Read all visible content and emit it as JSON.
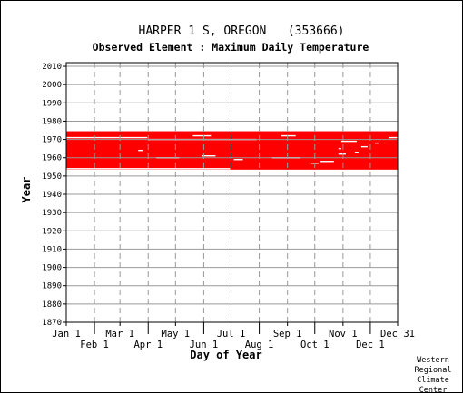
{
  "chart_data": {
    "type": "scatter",
    "title": "HARPER 1 S, OREGON   (353666)",
    "subtitle": "Observed Element : Maximum Daily Temperature",
    "xlabel": "Day of Year",
    "ylabel": "Year",
    "ylim": [
      1870,
      2012
    ],
    "yticks": [
      1870,
      1880,
      1890,
      1900,
      1910,
      1920,
      1930,
      1940,
      1950,
      1960,
      1970,
      1980,
      1990,
      2000,
      2010
    ],
    "xlim": [
      1,
      365
    ],
    "xticks_upper": [
      {
        "label": "Jan 1",
        "day": 1
      },
      {
        "label": "Mar 1",
        "day": 60
      },
      {
        "label": "May 1",
        "day": 121
      },
      {
        "label": "Jul 1",
        "day": 182
      },
      {
        "label": "Sep 1",
        "day": 244
      },
      {
        "label": "Nov 1",
        "day": 305
      },
      {
        "label": "Dec 31",
        "day": 365
      }
    ],
    "xticks_lower": [
      {
        "label": "Feb 1",
        "day": 32
      },
      {
        "label": "Apr 1",
        "day": 91
      },
      {
        "label": "Jun 1",
        "day": 152
      },
      {
        "label": "Aug 1",
        "day": 213
      },
      {
        "label": "Oct 1",
        "day": 274
      },
      {
        "label": "Dec 1",
        "day": 335
      }
    ],
    "grid": true,
    "marker_color": "#ff0000",
    "data_years": [
      1954,
      1974
    ],
    "observed_periods": [
      {
        "start_year": 1954,
        "start_day": 1,
        "end_year": 1974,
        "end_day": 365
      }
    ],
    "missing_data": [
      {
        "year": 1971,
        "start_day": 1,
        "end_day": 90
      },
      {
        "year": 1970,
        "start_day": 91,
        "end_day": 210
      },
      {
        "year": 1972,
        "start_day": 140,
        "end_day": 160
      },
      {
        "year": 1964,
        "start_day": 80,
        "end_day": 85
      },
      {
        "year": 1961,
        "start_day": 150,
        "end_day": 165
      },
      {
        "year": 1960,
        "start_day": 100,
        "end_day": 125
      },
      {
        "year": 1960,
        "start_day": 227,
        "end_day": 258
      },
      {
        "year": 1959,
        "start_day": 185,
        "end_day": 195
      },
      {
        "year": 1972,
        "start_day": 237,
        "end_day": 253
      },
      {
        "year": 1969,
        "start_day": 303,
        "end_day": 320
      },
      {
        "year": 1966,
        "start_day": 325,
        "end_day": 332
      },
      {
        "year": 1965,
        "start_day": 300,
        "end_day": 303
      },
      {
        "year": 1963,
        "start_day": 318,
        "end_day": 322
      },
      {
        "year": 1962,
        "start_day": 300,
        "end_day": 308
      },
      {
        "year": 1958,
        "start_day": 280,
        "end_day": 295
      },
      {
        "year": 1957,
        "start_day": 270,
        "end_day": 278
      },
      {
        "year": 1971,
        "start_day": 355,
        "end_day": 365
      },
      {
        "year": 1968,
        "start_day": 340,
        "end_day": 345
      },
      {
        "year": 1954,
        "start_day": 1,
        "end_day": 181
      }
    ]
  },
  "credit": [
    "Western",
    "Regional",
    "Climate",
    "Center"
  ]
}
